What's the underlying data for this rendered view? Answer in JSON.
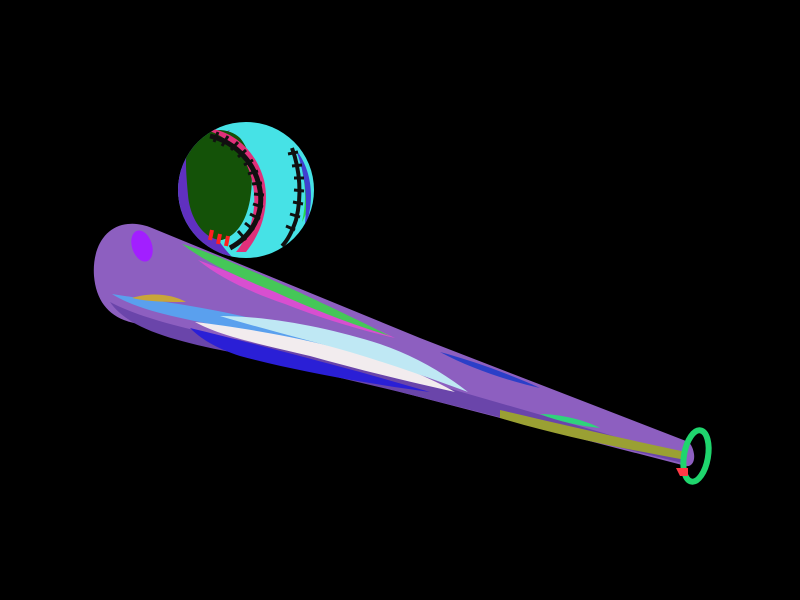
{
  "scene": {
    "subject": [
      "baseball-icon",
      "baseball-bat-icon"
    ],
    "colors": {
      "background": "#000000",
      "bat_body": "#8d5fc0",
      "bat_highlight_pink": "#d84fd0",
      "bat_highlight_blue": "#5aa0ee",
      "bat_highlight_white": "#f2ecee",
      "bat_stripe_green": "#45c758",
      "bat_stripe_olive": "#9aa033",
      "bat_shadow_blue": "#2a1fd6",
      "knob_green": "#1fd56d",
      "knob_red": "#ff3a46",
      "ball_cyan": "#46e2e6",
      "ball_dark_green": "#145208",
      "ball_violet": "#6030c0",
      "ball_seam_pink": "#e0307a",
      "ball_stitch": "#101010",
      "ball_stitch_red": "#ff2020"
    }
  }
}
